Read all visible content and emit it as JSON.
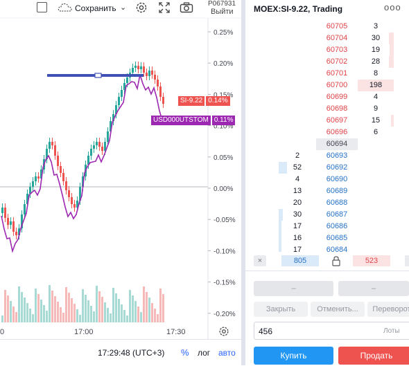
{
  "toolbar": {
    "save_label": "Сохранить",
    "account_line1": "P067931",
    "account_line2": "Выйти"
  },
  "chart": {
    "price_ticks": [
      "0.25%",
      "0.20%",
      "0.15%",
      "0.10%",
      "0.05%",
      "0.00%",
      "-0.05%",
      "-0.10%",
      "-0.15%",
      "-0.20%"
    ],
    "time_ticks": [
      "0",
      "17:00",
      "17:30"
    ],
    "badges": [
      {
        "label": "SI-9.22",
        "value": "0.14%",
        "color": "#ef5350"
      },
      {
        "label": "USD000UTSTOM",
        "value": "0.11%",
        "color": "#9c27b0"
      }
    ],
    "clock": "17:29:48 (UTC+3)",
    "percent_toggle": "%",
    "log_toggle": "лог",
    "auto_toggle": "авто"
  },
  "dom": {
    "title": "MOEX:SI-9.22, Trading",
    "more_label": "ooo",
    "asks": [
      {
        "price": "60705",
        "volume": "3"
      },
      {
        "price": "60704",
        "volume": "30"
      },
      {
        "price": "60703",
        "volume": "19"
      },
      {
        "price": "60702",
        "volume": "28"
      },
      {
        "price": "60701",
        "volume": "8"
      },
      {
        "price": "60700",
        "volume": "198"
      },
      {
        "price": "60699",
        "volume": "4"
      },
      {
        "price": "60698",
        "volume": "9"
      },
      {
        "price": "60697",
        "volume": "15"
      },
      {
        "price": "60696",
        "volume": "6"
      }
    ],
    "last_price": "60694",
    "bids": [
      {
        "price": "60693",
        "volume": "2"
      },
      {
        "price": "60692",
        "volume": "52"
      },
      {
        "price": "60690",
        "volume": "4"
      },
      {
        "price": "60689",
        "volume": "13"
      },
      {
        "price": "60688",
        "volume": "20"
      },
      {
        "price": "60687",
        "volume": "30"
      },
      {
        "price": "60686",
        "volume": "17"
      },
      {
        "price": "60685",
        "volume": "16"
      },
      {
        "price": "60684",
        "volume": "17"
      }
    ],
    "bid_total": "805",
    "ask_total": "523",
    "dash1": "–",
    "dash2": "–",
    "close_label": "Закрыть",
    "cancel_label": "Отменить...",
    "reverse_label": "Переворот",
    "quantity_value": "456",
    "lots_label": "Лоты",
    "buy_label": "Купить",
    "sell_label": "Продать"
  }
}
